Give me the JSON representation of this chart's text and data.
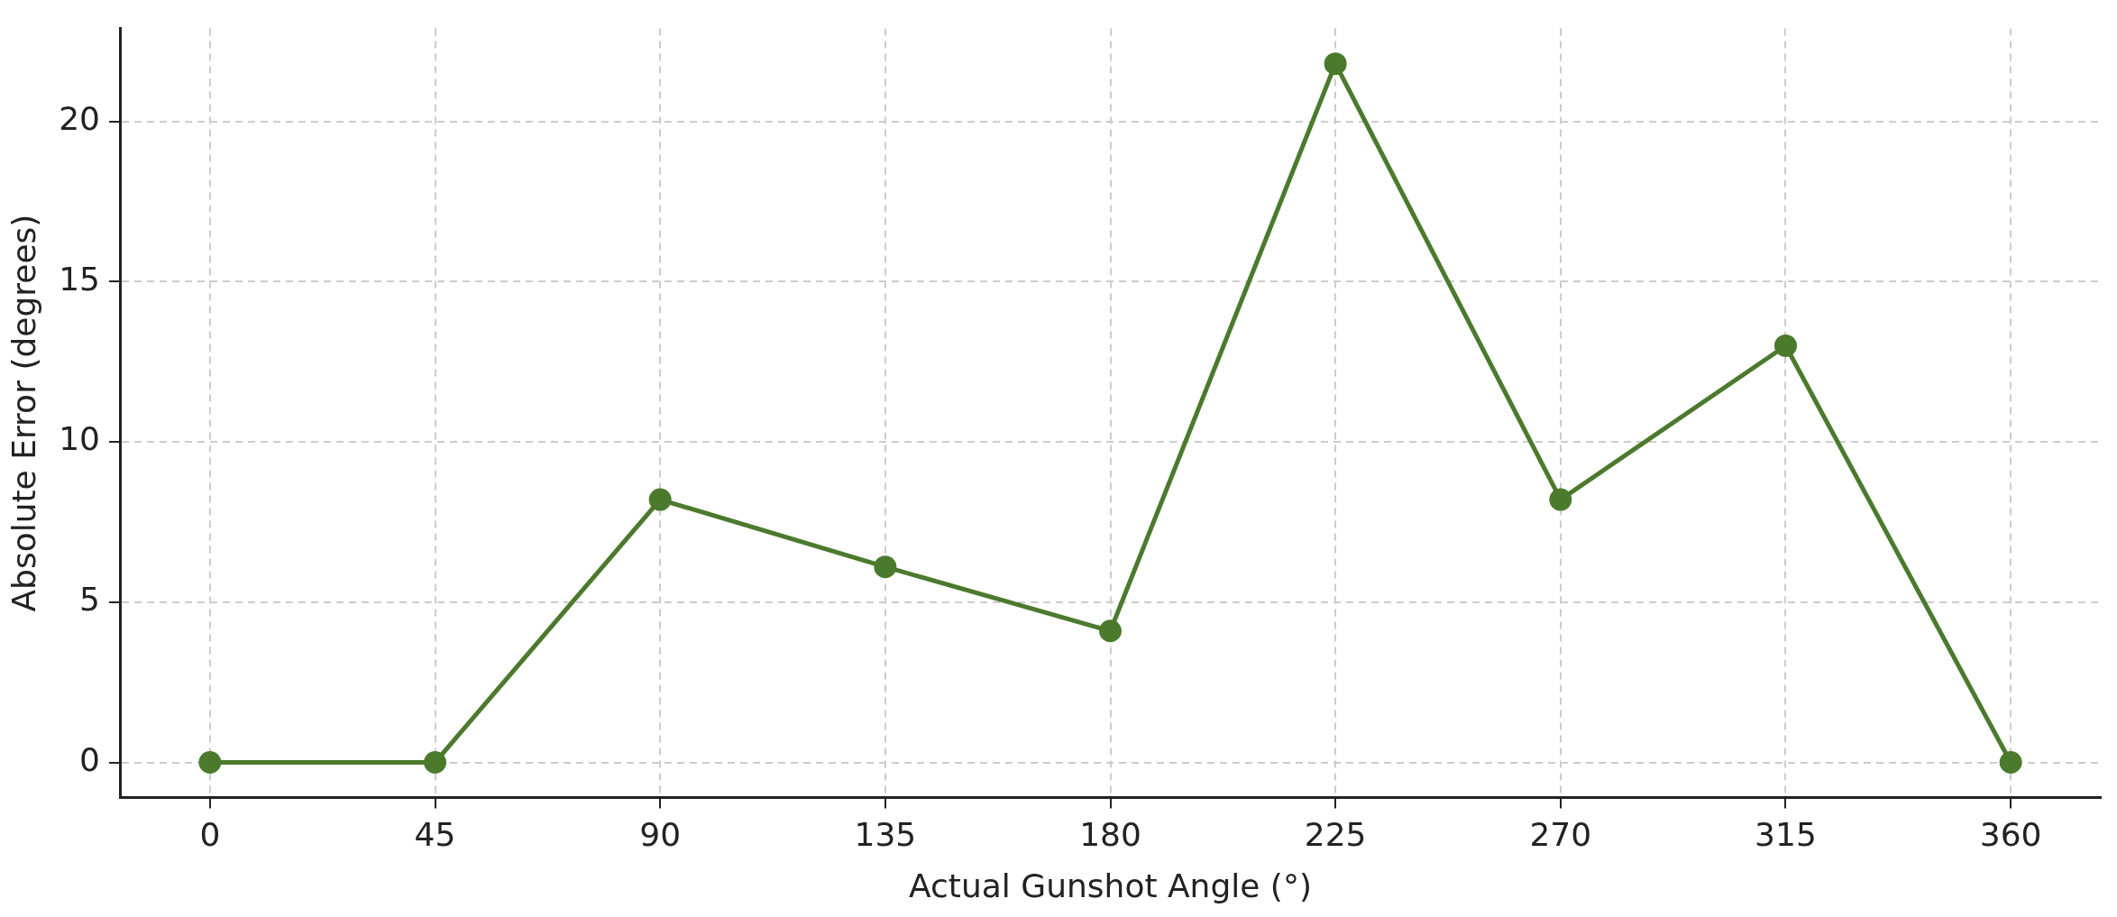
{
  "chart_data": {
    "type": "line",
    "xlabel": "Actual Gunshot Angle (°)",
    "ylabel": "Absolute Error (degrees)",
    "x": [
      0,
      45,
      90,
      135,
      180,
      225,
      270,
      315,
      360
    ],
    "series": [
      {
        "color": "#4b7a2d",
        "values": [
          0,
          0,
          8.2,
          6.1,
          4.1,
          21.8,
          8.2,
          13.0,
          0
        ]
      }
    ],
    "xlim": [
      -18,
      378
    ],
    "xticks": [
      0,
      45,
      90,
      135,
      180,
      225,
      270,
      315,
      360
    ],
    "ylim": [
      -1.1,
      22.9
    ],
    "yticks": [
      0,
      5,
      10,
      15,
      20
    ],
    "grid": true,
    "marker": "circle",
    "line_style": "solid",
    "legend": false
  }
}
